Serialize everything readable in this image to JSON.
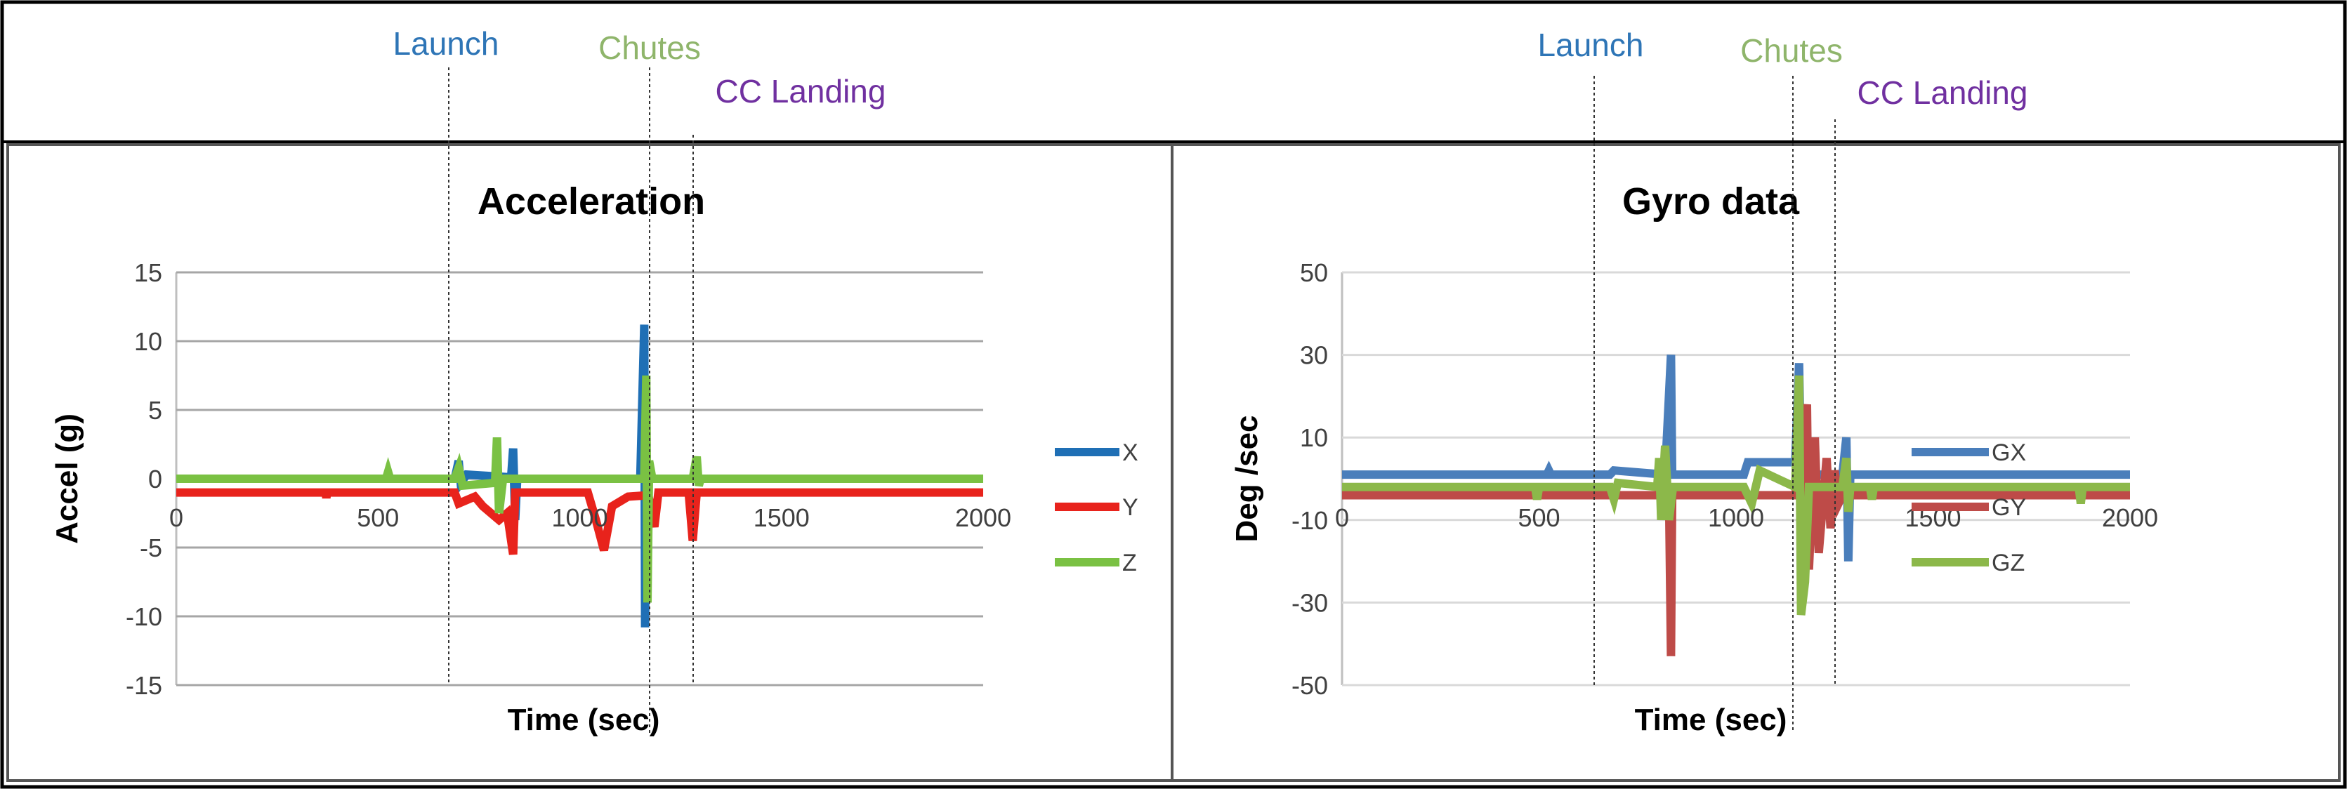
{
  "events": {
    "launch": {
      "label": "Launch",
      "color": "#2e75b6"
    },
    "chutes": {
      "label": "Chutes",
      "color": "#8fb56b"
    },
    "cc_landing": {
      "label": "CC Landing",
      "color": "#7030a0"
    }
  },
  "chart_data": [
    {
      "type": "line",
      "title": "Acceleration",
      "xlabel": "Time (sec)",
      "ylabel": "Accel (g)",
      "xlim": [
        0,
        2000
      ],
      "ylim": [
        -15,
        15
      ],
      "xticks": [
        "0",
        "500",
        "1000",
        "1500",
        "2000"
      ],
      "yticks": [
        "15",
        "10",
        "5",
        "0",
        "-5",
        "-10",
        "-15"
      ],
      "grid": true,
      "legend": "right",
      "series": [
        {
          "name": "X",
          "color": "#1f6fb5",
          "points": [
            [
              0,
              0
            ],
            [
              690,
              0
            ],
            [
              700,
              1.3
            ],
            [
              705,
              -0.3
            ],
            [
              720,
              0.3
            ],
            [
              830,
              0.1
            ],
            [
              835,
              2.2
            ],
            [
              840,
              -3
            ],
            [
              845,
              0
            ],
            [
              1150,
              0
            ],
            [
              1160,
              11.2
            ],
            [
              1162,
              -10.8
            ],
            [
              1165,
              0
            ],
            [
              2000,
              0
            ]
          ]
        },
        {
          "name": "Y",
          "color": "#e8231c",
          "points": [
            [
              0,
              -1
            ],
            [
              370,
              -1
            ],
            [
              372,
              -1.4
            ],
            [
              374,
              -1
            ],
            [
              690,
              -1
            ],
            [
              700,
              -1.8
            ],
            [
              740,
              -1.3
            ],
            [
              760,
              -2
            ],
            [
              800,
              -3
            ],
            [
              820,
              -2.5
            ],
            [
              835,
              -5.5
            ],
            [
              840,
              -1
            ],
            [
              1020,
              -1
            ],
            [
              1040,
              -3
            ],
            [
              1060,
              -5.2
            ],
            [
              1080,
              -2
            ],
            [
              1120,
              -1.3
            ],
            [
              1170,
              -1.2
            ],
            [
              1185,
              -3.5
            ],
            [
              1195,
              -1
            ],
            [
              1270,
              -1
            ],
            [
              1280,
              -4.5
            ],
            [
              1290,
              -1
            ],
            [
              2000,
              -1
            ]
          ]
        },
        {
          "name": "Z",
          "color": "#7ac143",
          "points": [
            [
              0,
              0
            ],
            [
              520,
              0
            ],
            [
              525,
              0.5
            ],
            [
              530,
              0
            ],
            [
              690,
              0
            ],
            [
              700,
              0.8
            ],
            [
              710,
              -0.5
            ],
            [
              790,
              -0.3
            ],
            [
              795,
              3
            ],
            [
              800,
              -2.5
            ],
            [
              810,
              0
            ],
            [
              1160,
              0
            ],
            [
              1165,
              7.5
            ],
            [
              1168,
              -9
            ],
            [
              1172,
              1.3
            ],
            [
              1180,
              0
            ],
            [
              1280,
              0
            ],
            [
              1290,
              1.6
            ],
            [
              1295,
              -0.5
            ],
            [
              1300,
              0
            ],
            [
              2000,
              0
            ]
          ]
        }
      ]
    },
    {
      "type": "line",
      "title": "Gyro data",
      "xlabel": "Time (sec)",
      "ylabel": "Deg /sec",
      "xlim": [
        0,
        2000
      ],
      "ylim": [
        -50,
        50
      ],
      "xticks": [
        "0",
        "500",
        "1000",
        "1500",
        "2000"
      ],
      "yticks": [
        "50",
        "30",
        "10",
        "-10",
        "-30",
        "-50"
      ],
      "grid": true,
      "legend": "right",
      "series": [
        {
          "name": "GX",
          "color": "#4a7ebb",
          "points": [
            [
              0,
              1
            ],
            [
              520,
              1
            ],
            [
              525,
              2
            ],
            [
              530,
              1
            ],
            [
              680,
              1
            ],
            [
              690,
              2
            ],
            [
              820,
              1
            ],
            [
              835,
              30
            ],
            [
              838,
              1
            ],
            [
              1020,
              1
            ],
            [
              1030,
              4
            ],
            [
              1150,
              4
            ],
            [
              1160,
              28
            ],
            [
              1165,
              1
            ],
            [
              1270,
              1
            ],
            [
              1280,
              10
            ],
            [
              1285,
              -20
            ],
            [
              1290,
              1
            ],
            [
              2000,
              1
            ]
          ]
        },
        {
          "name": "GY",
          "color": "#be4b48",
          "points": [
            [
              0,
              -4
            ],
            [
              830,
              -4
            ],
            [
              835,
              -43
            ],
            [
              838,
              -4
            ],
            [
              1150,
              -4
            ],
            [
              1180,
              18
            ],
            [
              1185,
              -22
            ],
            [
              1200,
              10
            ],
            [
              1210,
              -18
            ],
            [
              1230,
              5
            ],
            [
              1240,
              -12
            ],
            [
              1250,
              2
            ],
            [
              1260,
              -6
            ],
            [
              1270,
              -4
            ],
            [
              2000,
              -4
            ]
          ]
        },
        {
          "name": "GZ",
          "color": "#8cb84a",
          "points": [
            [
              0,
              -2
            ],
            [
              490,
              -2
            ],
            [
              495,
              -5
            ],
            [
              500,
              -2
            ],
            [
              680,
              -2
            ],
            [
              690,
              -5
            ],
            [
              700,
              -1
            ],
            [
              800,
              -2
            ],
            [
              805,
              5
            ],
            [
              810,
              -10
            ],
            [
              820,
              8
            ],
            [
              830,
              -10
            ],
            [
              840,
              -2
            ],
            [
              1020,
              -2
            ],
            [
              1040,
              -6
            ],
            [
              1060,
              2
            ],
            [
              1150,
              -2
            ],
            [
              1160,
              25
            ],
            [
              1165,
              -33
            ],
            [
              1175,
              -25
            ],
            [
              1185,
              -2
            ],
            [
              1270,
              -2
            ],
            [
              1280,
              5
            ],
            [
              1285,
              -8
            ],
            [
              1290,
              -2
            ],
            [
              1340,
              -2
            ],
            [
              1345,
              -5
            ],
            [
              1350,
              -2
            ],
            [
              1870,
              -2
            ],
            [
              1875,
              -6
            ],
            [
              1880,
              -2
            ],
            [
              2000,
              -2
            ]
          ]
        }
      ]
    }
  ]
}
